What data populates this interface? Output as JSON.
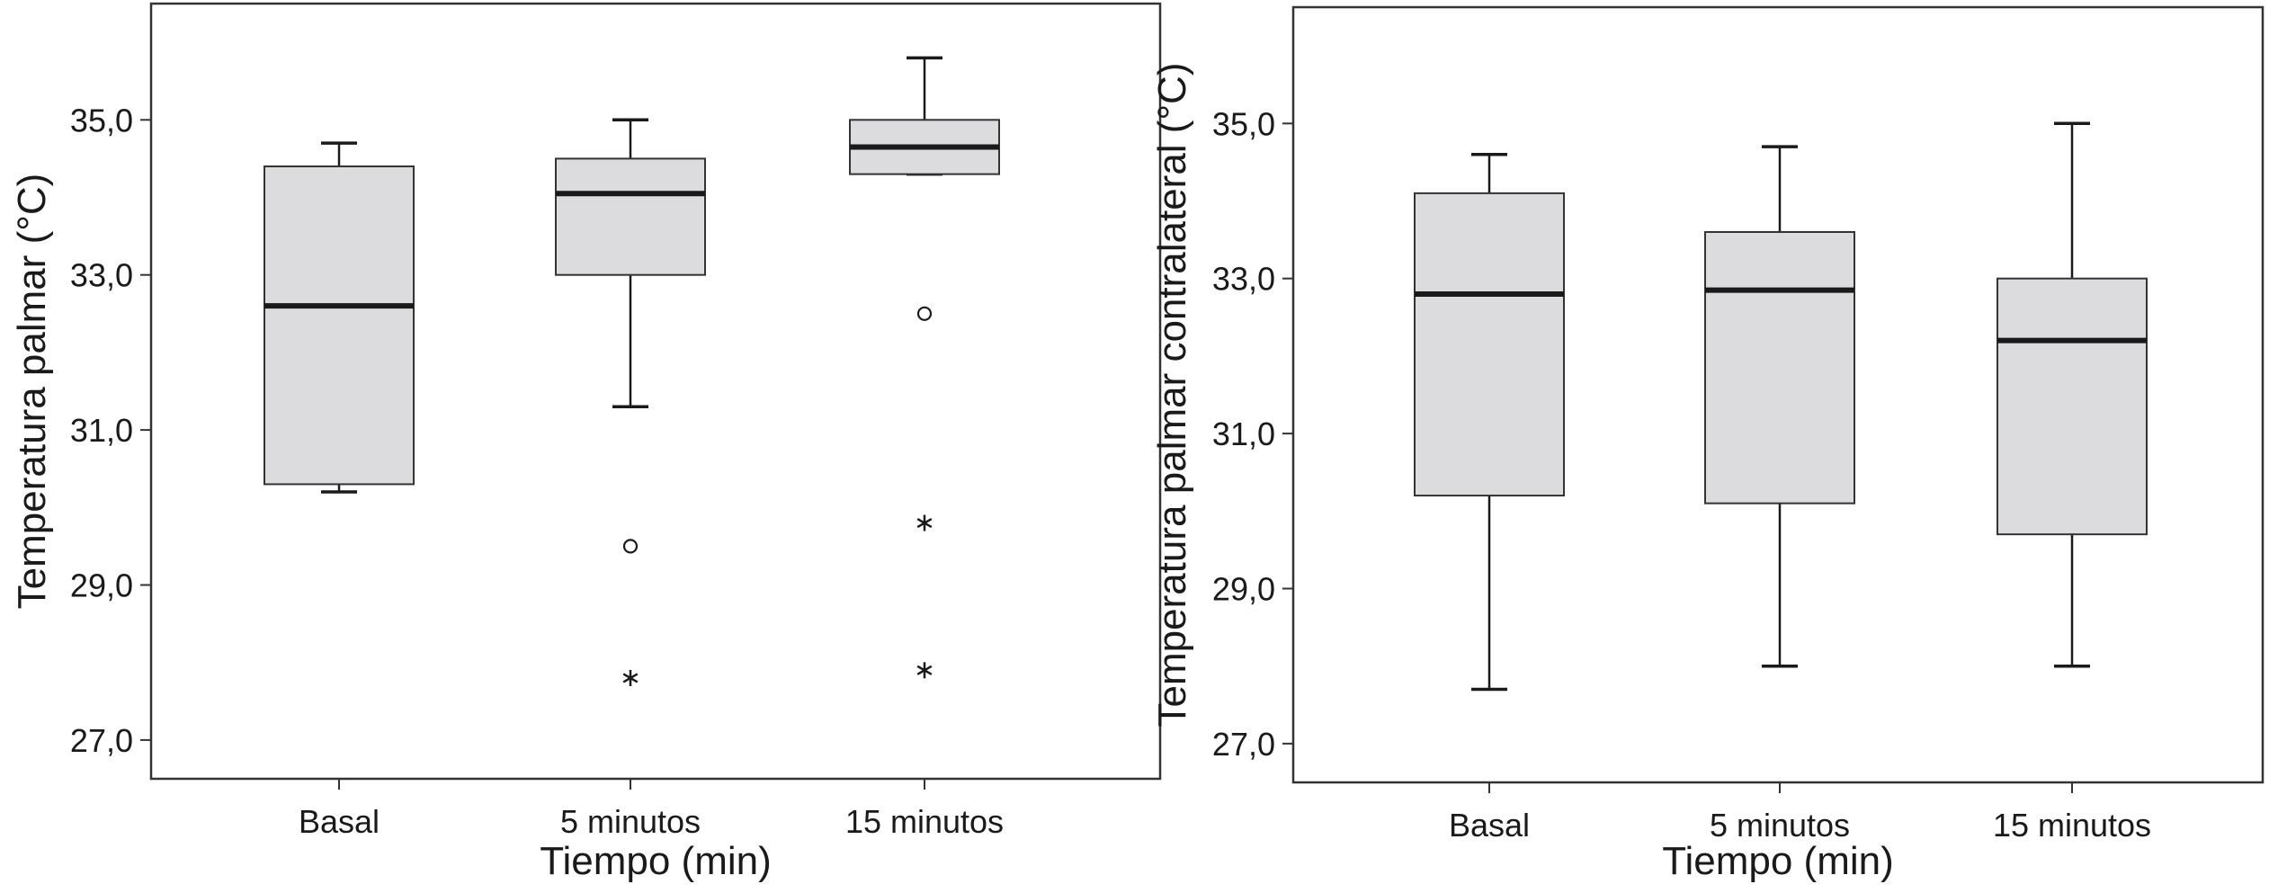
{
  "chart_data": [
    {
      "type": "box",
      "title": "",
      "xlabel": "Tiempo (min)",
      "ylabel": "Temperatura palmar (°C)",
      "ylim": [
        26.5,
        36.5
      ],
      "yticks": [
        27.0,
        29.0,
        31.0,
        33.0,
        35.0
      ],
      "ytick_labels": [
        "27,0",
        "29,0",
        "31,0",
        "33,0",
        "35,0"
      ],
      "categories": [
        "Basal",
        "5 minutos",
        "15 minutos"
      ],
      "boxes": [
        {
          "category": "Basal",
          "whisker_low": 30.2,
          "q1": 30.3,
          "median": 32.6,
          "q3": 34.4,
          "whisker_high": 34.7,
          "outliers": [],
          "extremes": []
        },
        {
          "category": "5 minutos",
          "whisker_low": 31.3,
          "q1": 33.0,
          "median": 34.05,
          "q3": 34.5,
          "whisker_high": 35.0,
          "outliers": [
            29.5
          ],
          "extremes": [
            27.8
          ]
        },
        {
          "category": "15 minutos",
          "whisker_low": 34.3,
          "q1": 34.3,
          "median": 34.65,
          "q3": 35.0,
          "whisker_high": 35.8,
          "outliers": [
            32.5
          ],
          "extremes": [
            29.8,
            27.9
          ]
        }
      ],
      "grid": false,
      "legend": "none"
    },
    {
      "type": "box",
      "title": "",
      "xlabel": "Tiempo (min)",
      "ylabel": "Temperatura palmar contralateral (°C)",
      "ylim": [
        26.5,
        36.5
      ],
      "yticks": [
        27.0,
        29.0,
        31.0,
        33.0,
        35.0
      ],
      "ytick_labels": [
        "27,0",
        "29,0",
        "31,0",
        "33,0",
        "35,0"
      ],
      "categories": [
        "Basal",
        "5 minutos",
        "15 minutos"
      ],
      "boxes": [
        {
          "category": "Basal",
          "whisker_low": 27.7,
          "q1": 30.2,
          "median": 32.8,
          "q3": 34.1,
          "whisker_high": 34.6,
          "outliers": [],
          "extremes": []
        },
        {
          "category": "5 minutos",
          "whisker_low": 28.0,
          "q1": 30.1,
          "median": 32.85,
          "q3": 33.6,
          "whisker_high": 34.7,
          "outliers": [],
          "extremes": []
        },
        {
          "category": "15 minutos",
          "whisker_low": 28.0,
          "q1": 29.7,
          "median": 32.2,
          "q3": 33.0,
          "whisker_high": 35.0,
          "outliers": [],
          "extremes": []
        }
      ],
      "grid": false,
      "legend": "none"
    }
  ]
}
